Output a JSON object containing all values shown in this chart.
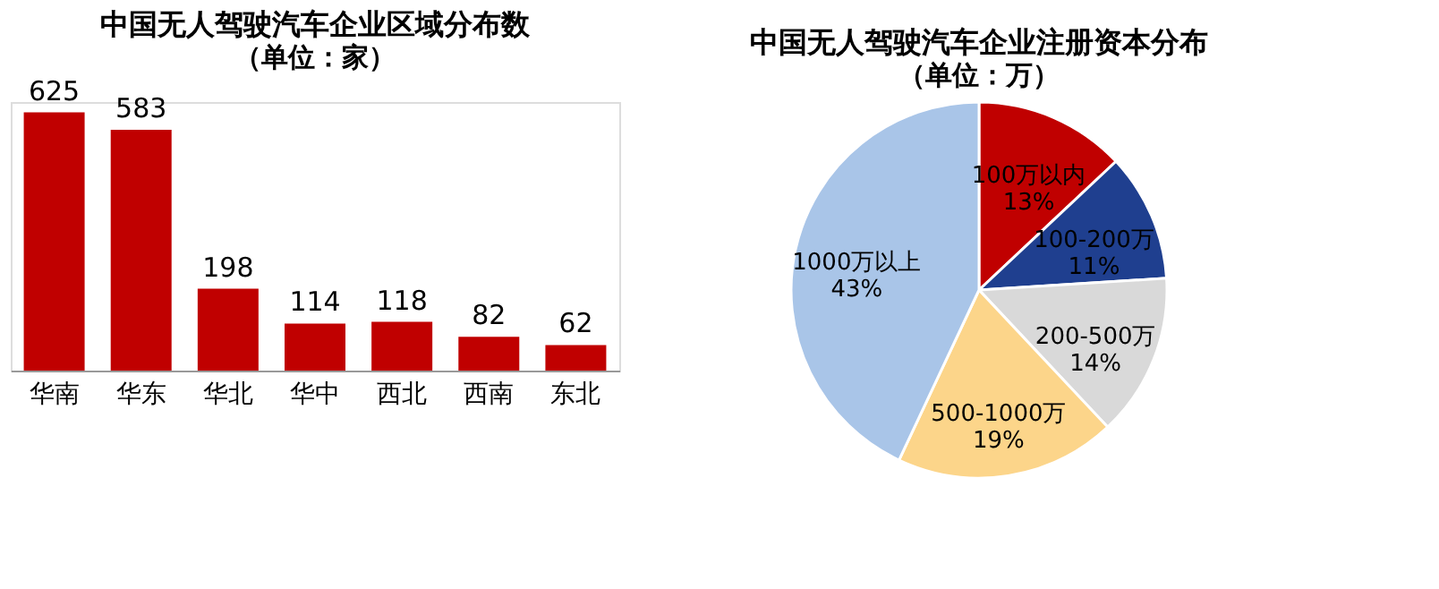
{
  "chart_data": [
    {
      "type": "bar",
      "title": "中国无人驾驶汽车企业区域分布数",
      "subtitle": "（单位：家）",
      "categories": [
        "华南",
        "华东",
        "华北",
        "华中",
        "西北",
        "西南",
        "东北"
      ],
      "values": [
        625,
        583,
        198,
        114,
        118,
        82,
        62
      ],
      "color": "#c00000",
      "data_labels": true,
      "grid": false
    },
    {
      "type": "pie",
      "title": "中国无人驾驶汽车企业注册资本分布",
      "subtitle": "（单位：万）",
      "categories": [
        "100万以内",
        "100-200万",
        "200-500万",
        "500-1000万",
        "1000万以上"
      ],
      "values": [
        13,
        11,
        14,
        19,
        43
      ],
      "value_labels": [
        "13%",
        "11%",
        "14%",
        "19%",
        "43%"
      ],
      "colors": [
        "#c00000",
        "#1f3f8f",
        "#d9d9d9",
        "#fcd58a",
        "#a9c5e8"
      ]
    }
  ]
}
